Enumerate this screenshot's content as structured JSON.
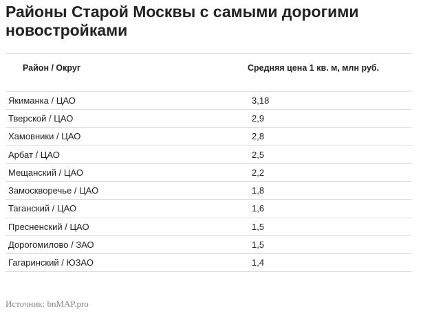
{
  "header": {
    "title": "Районы Старой Москвы с самыми дорогими новостройками"
  },
  "table": {
    "columns": [
      "Район / Округ",
      "Средняя цена 1 кв. м, млн руб."
    ],
    "rows": [
      [
        "Якиманка / ЦАО",
        "3,18"
      ],
      [
        "Тверской / ЦАО",
        "2,9"
      ],
      [
        "Хамовники / ЦАО",
        "2,8"
      ],
      [
        "Арбат / ЦАО",
        "2,5"
      ],
      [
        "Мещанский / ЦАО",
        "2,2"
      ],
      [
        "Замоскворечье / ЦАО",
        "1,8"
      ],
      [
        "Таганский / ЦАО",
        "1,6"
      ],
      [
        "Пресненский / ЦАО",
        "1,5"
      ],
      [
        "Дорогомилово / ЗАО",
        "1,5"
      ],
      [
        "Гагаринский / ЮЗАО",
        "1,4"
      ]
    ]
  },
  "footer": {
    "source": "Источник: bnMAP.pro"
  }
}
